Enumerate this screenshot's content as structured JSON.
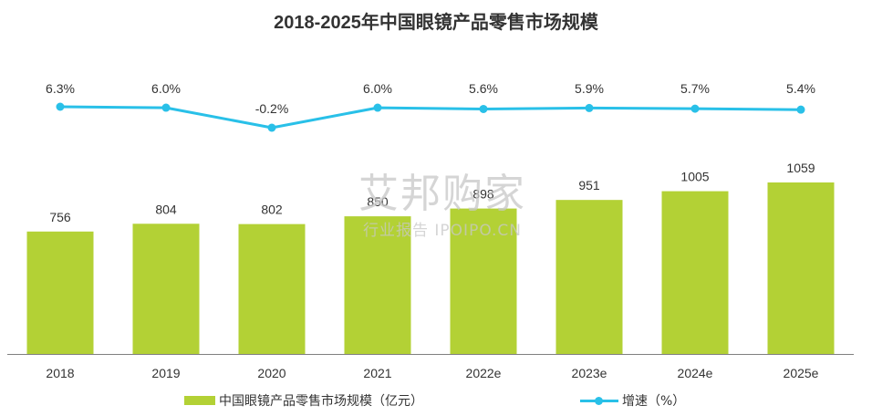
{
  "chart_data": {
    "type": "bar",
    "title": "2018-2025年中国眼镜产品零售市场规模",
    "categories": [
      "2018",
      "2019",
      "2020",
      "2021",
      "2022e",
      "2023e",
      "2024e",
      "2025e"
    ],
    "series": [
      {
        "name": "中国眼镜产品零售市场规模（亿元）",
        "type": "bar",
        "values": [
          756,
          804,
          802,
          850,
          898,
          951,
          1005,
          1059
        ],
        "value_labels": [
          "756",
          "804",
          "802",
          "850",
          "898",
          "951",
          "1005",
          "1059"
        ],
        "color": "#b3d135"
      },
      {
        "name": "增速（%）",
        "type": "line",
        "values": [
          6.3,
          6.0,
          -0.2,
          6.0,
          5.6,
          5.9,
          5.7,
          5.4
        ],
        "value_labels": [
          "6.3%",
          "6.0%",
          "-0.2%",
          "6.0%",
          "5.6%",
          "5.9%",
          "5.7%",
          "5.4%"
        ],
        "color": "#29c0e8"
      }
    ],
    "legend_position": "bottom",
    "grid": false
  },
  "watermark": {
    "line1": "艾邦购家",
    "line2": "行业报告 IPOIPO.CN"
  },
  "colors": {
    "bar": "#b3d135",
    "line": "#29c0e8",
    "axis": "#7f7f7f",
    "text": "#333333"
  }
}
